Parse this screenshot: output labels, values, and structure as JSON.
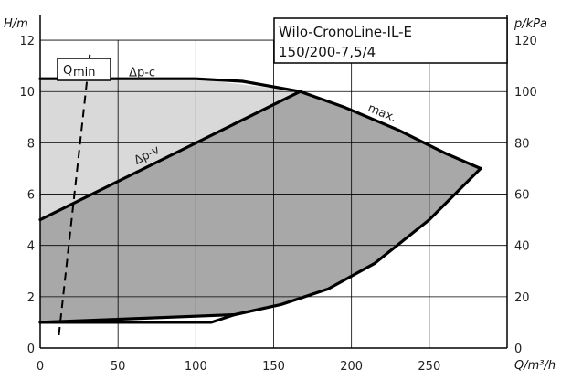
{
  "chart_data": {
    "type": "area",
    "title_line1": "Wilo-CronoLine-IL-E",
    "title_line2": "150/200-7,5/4",
    "xlabel": "Q/m³/h",
    "ylabel_left": "H/m",
    "ylabel_right": "p/kPa",
    "xlim": [
      0,
      300
    ],
    "ylim_left": [
      0,
      13
    ],
    "ylim_right": [
      0,
      130
    ],
    "x_ticks": [
      0,
      50,
      100,
      150,
      200,
      250
    ],
    "y_ticks_left": [
      0,
      2,
      4,
      6,
      8,
      10,
      12
    ],
    "y_ticks_right": [
      0,
      20,
      40,
      60,
      80,
      100,
      120
    ],
    "grid": true,
    "colors": {
      "light_region": "#d9d9d9",
      "dark_region": "#a8a8a8",
      "curve": "#000000",
      "grid": "#000000"
    },
    "regions": {
      "light": [
        [
          0,
          10.5
        ],
        [
          100,
          10.5
        ],
        [
          167,
          10.0
        ],
        [
          0,
          5.0
        ]
      ],
      "dark": [
        [
          0,
          5.0
        ],
        [
          167,
          10.0
        ],
        [
          195,
          9.4
        ],
        [
          230,
          8.5
        ],
        [
          260,
          7.6
        ],
        [
          283,
          7.0
        ],
        [
          250,
          5.0
        ],
        [
          215,
          3.3
        ],
        [
          185,
          2.3
        ],
        [
          155,
          1.7
        ],
        [
          125,
          1.3
        ],
        [
          0,
          1.0
        ]
      ]
    },
    "curves": [
      {
        "points": [
          [
            0,
            10.5
          ],
          [
            100,
            10.5
          ],
          [
            130,
            10.4
          ],
          [
            167,
            10.0
          ],
          [
            195,
            9.4
          ],
          [
            230,
            8.5
          ],
          [
            260,
            7.6
          ],
          [
            283,
            7.0
          ]
        ]
      },
      {
        "points": [
          [
            0,
            5.0
          ],
          [
            167,
            10.0
          ]
        ]
      },
      {
        "points": [
          [
            283,
            7.0
          ],
          [
            250,
            5.0
          ],
          [
            215,
            3.3
          ],
          [
            185,
            2.3
          ],
          [
            155,
            1.7
          ],
          [
            125,
            1.3
          ],
          [
            0,
            1.0
          ]
        ]
      },
      {
        "points": [
          [
            0,
            1.0
          ],
          [
            110,
            1.0
          ],
          [
            125,
            1.3
          ]
        ]
      }
    ],
    "qmin_line": {
      "label_main": "Q",
      "label_sub": "min",
      "points": [
        [
          12,
          0.5
        ],
        [
          32,
          11.5
        ]
      ]
    },
    "annotations": [
      {
        "text": "Δp-c",
        "x": 57,
        "y": 10.6
      },
      {
        "text": "Δp-v",
        "x": 62,
        "y": 7.15
      },
      {
        "text": "max.",
        "x": 210,
        "y": 9.25
      }
    ]
  }
}
